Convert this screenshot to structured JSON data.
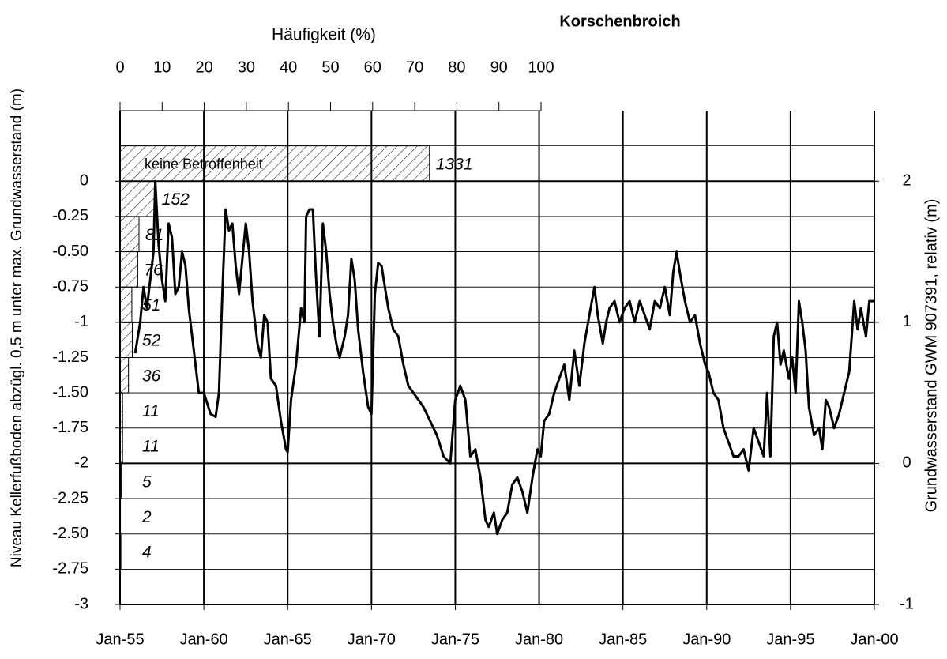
{
  "chart_data": {
    "type": "line",
    "title": "Korschenbroich",
    "ylabel": "Niveau Kellerfußboden abzügl. 0,5 m unter max. Grundwasserstand (m)",
    "y2label": "Grundwasserstand GWM 907391, relativ (m)",
    "ylim": [
      -3,
      0.5
    ],
    "yticks": [
      0,
      -0.25,
      {
        "value": -0.5,
        "label": "-0.50"
      },
      -0.75,
      -1,
      -1.25,
      {
        "value": -1.5,
        "label": "-1.50"
      },
      -1.75,
      -2,
      -2.25,
      {
        "value": -2.5,
        "label": "-2.50"
      },
      -2.75,
      -3
    ],
    "y2lim": [
      -1,
      2.5
    ],
    "y2ticks": [
      2,
      1,
      0,
      -1
    ],
    "xlim": [
      1955,
      2000
    ],
    "xticks": [
      {
        "value": 1955,
        "label": "Jan-55"
      },
      {
        "value": 1960,
        "label": "Jan-60"
      },
      {
        "value": 1965,
        "label": "Jan-65"
      },
      {
        "value": 1970,
        "label": "Jan-70"
      },
      {
        "value": 1975,
        "label": "Jan-75"
      },
      {
        "value": 1980,
        "label": "Jan-80"
      },
      {
        "value": 1985,
        "label": "Jan-85"
      },
      {
        "value": 1990,
        "label": "Jan-90"
      },
      {
        "value": 1995,
        "label": "Jan-95"
      },
      {
        "value": 2000,
        "label": "Jan-00"
      }
    ],
    "grid": true,
    "series": [
      {
        "name": "Grundwasserstand GWM 907391",
        "color": "#000000",
        "axis": "y2",
        "x": [
          1955.9,
          1956.2,
          1956.4,
          1956.6,
          1956.8,
          1957.0,
          1957.1,
          1957.3,
          1957.5,
          1957.7,
          1957.9,
          1958.1,
          1958.3,
          1958.5,
          1958.7,
          1958.9,
          1959.1,
          1959.4,
          1959.7,
          1960.0,
          1960.4,
          1960.7,
          1960.9,
          1961.1,
          1961.3,
          1961.5,
          1961.7,
          1961.9,
          1962.1,
          1962.3,
          1962.5,
          1962.7,
          1962.9,
          1963.2,
          1963.4,
          1963.6,
          1963.8,
          1964.0,
          1964.3,
          1964.6,
          1964.9,
          1965.0,
          1965.2,
          1965.5,
          1965.8,
          1966.0,
          1966.1,
          1966.3,
          1966.5,
          1966.7,
          1966.9,
          1967.1,
          1967.3,
          1967.5,
          1967.7,
          1967.9,
          1968.1,
          1968.4,
          1968.6,
          1968.8,
          1969.0,
          1969.2,
          1969.5,
          1969.8,
          1970.0,
          1970.2,
          1970.4,
          1970.6,
          1970.8,
          1971.0,
          1971.3,
          1971.6,
          1971.9,
          1972.2,
          1972.5,
          1972.8,
          1973.1,
          1973.5,
          1973.9,
          1974.3,
          1974.7,
          1975.0,
          1975.3,
          1975.6,
          1975.9,
          1976.2,
          1976.5,
          1976.8,
          1977.0,
          1977.3,
          1977.5,
          1977.8,
          1978.1,
          1978.4,
          1978.7,
          1979.0,
          1979.3,
          1979.6,
          1979.9,
          1980.1,
          1980.3,
          1980.6,
          1980.9,
          1981.2,
          1981.5,
          1981.8,
          1982.1,
          1982.4,
          1982.7,
          1983.0,
          1983.3,
          1983.5,
          1983.8,
          1984.0,
          1984.2,
          1984.5,
          1984.8,
          1985.1,
          1985.4,
          1985.7,
          1986.0,
          1986.3,
          1986.6,
          1986.9,
          1987.2,
          1987.5,
          1987.8,
          1988.0,
          1988.2,
          1988.4,
          1988.7,
          1989.0,
          1989.3,
          1989.6,
          1989.9,
          1990.1,
          1990.4,
          1990.7,
          1991.0,
          1991.3,
          1991.6,
          1991.9,
          1992.2,
          1992.5,
          1992.8,
          1993.1,
          1993.4,
          1993.6,
          1993.8,
          1994.0,
          1994.2,
          1994.4,
          1994.6,
          1994.9,
          1995.1,
          1995.3,
          1995.5,
          1995.7,
          1995.9,
          1996.1,
          1996.4,
          1996.7,
          1996.9,
          1997.1,
          1997.3,
          1997.6,
          1997.9,
          1998.2,
          1998.5,
          1998.8,
          1999.0,
          1999.2,
          1999.5,
          1999.7,
          2000.0
        ],
        "values": [
          0.78,
          1.0,
          1.25,
          1.1,
          1.3,
          1.5,
          2.0,
          1.55,
          1.3,
          1.15,
          1.7,
          1.6,
          1.2,
          1.25,
          1.5,
          1.4,
          1.1,
          0.8,
          0.5,
          0.5,
          0.35,
          0.33,
          0.5,
          1.2,
          1.8,
          1.65,
          1.7,
          1.4,
          1.2,
          1.45,
          1.7,
          1.5,
          1.15,
          0.85,
          0.75,
          1.05,
          1.0,
          0.6,
          0.55,
          0.3,
          0.1,
          0.08,
          0.45,
          0.7,
          1.1,
          1.0,
          1.75,
          1.8,
          1.8,
          1.3,
          0.9,
          1.7,
          1.5,
          1.2,
          1.0,
          0.85,
          0.75,
          0.9,
          1.05,
          1.45,
          1.3,
          0.95,
          0.65,
          0.4,
          0.35,
          1.2,
          1.42,
          1.4,
          1.25,
          1.1,
          0.95,
          0.9,
          0.7,
          0.55,
          0.5,
          0.45,
          0.4,
          0.3,
          0.2,
          0.05,
          0.0,
          0.45,
          0.55,
          0.45,
          0.05,
          0.1,
          -0.1,
          -0.4,
          -0.45,
          -0.35,
          -0.5,
          -0.4,
          -0.35,
          -0.15,
          -0.1,
          -0.2,
          -0.35,
          -0.1,
          0.1,
          0.05,
          0.3,
          0.35,
          0.5,
          0.6,
          0.7,
          0.45,
          0.8,
          0.55,
          0.85,
          1.05,
          1.25,
          1.05,
          0.85,
          1.0,
          1.1,
          1.15,
          1.0,
          1.1,
          1.15,
          1.0,
          1.15,
          1.05,
          0.95,
          1.15,
          1.1,
          1.25,
          1.05,
          1.35,
          1.5,
          1.35,
          1.15,
          1.0,
          1.05,
          0.85,
          0.7,
          0.65,
          0.5,
          0.45,
          0.25,
          0.15,
          0.05,
          0.05,
          0.1,
          -0.05,
          0.25,
          0.15,
          0.05,
          0.5,
          0.05,
          0.9,
          1.0,
          0.7,
          0.8,
          0.6,
          0.75,
          0.5,
          1.15,
          1.0,
          0.8,
          0.4,
          0.2,
          0.25,
          0.1,
          0.45,
          0.4,
          0.25,
          0.35,
          0.5,
          0.65,
          1.15,
          0.95,
          1.1,
          0.9,
          1.15,
          1.15
        ]
      }
    ],
    "histogram": {
      "type": "histogram",
      "xlabel": "Häufigkeit (%)",
      "xlim": [
        0,
        100
      ],
      "xticks": [
        0,
        10,
        20,
        30,
        40,
        50,
        60,
        70,
        80,
        90,
        100
      ],
      "bins": [
        0.25,
        0,
        -0.25,
        -0.5,
        -0.75,
        -1,
        -1.25,
        -1.5,
        -1.75,
        -2,
        -2.25,
        -2.5,
        -2.75
      ],
      "values": [
        73.5,
        8.4,
        4.5,
        4.2,
        2.8,
        2.9,
        2.0,
        0.6,
        0.6,
        0.3,
        0.1,
        0.2
      ],
      "counts": [
        1331,
        152,
        81,
        76,
        51,
        52,
        36,
        11,
        11,
        5,
        2,
        4
      ],
      "annotation": "keine Betroffenheit"
    }
  }
}
